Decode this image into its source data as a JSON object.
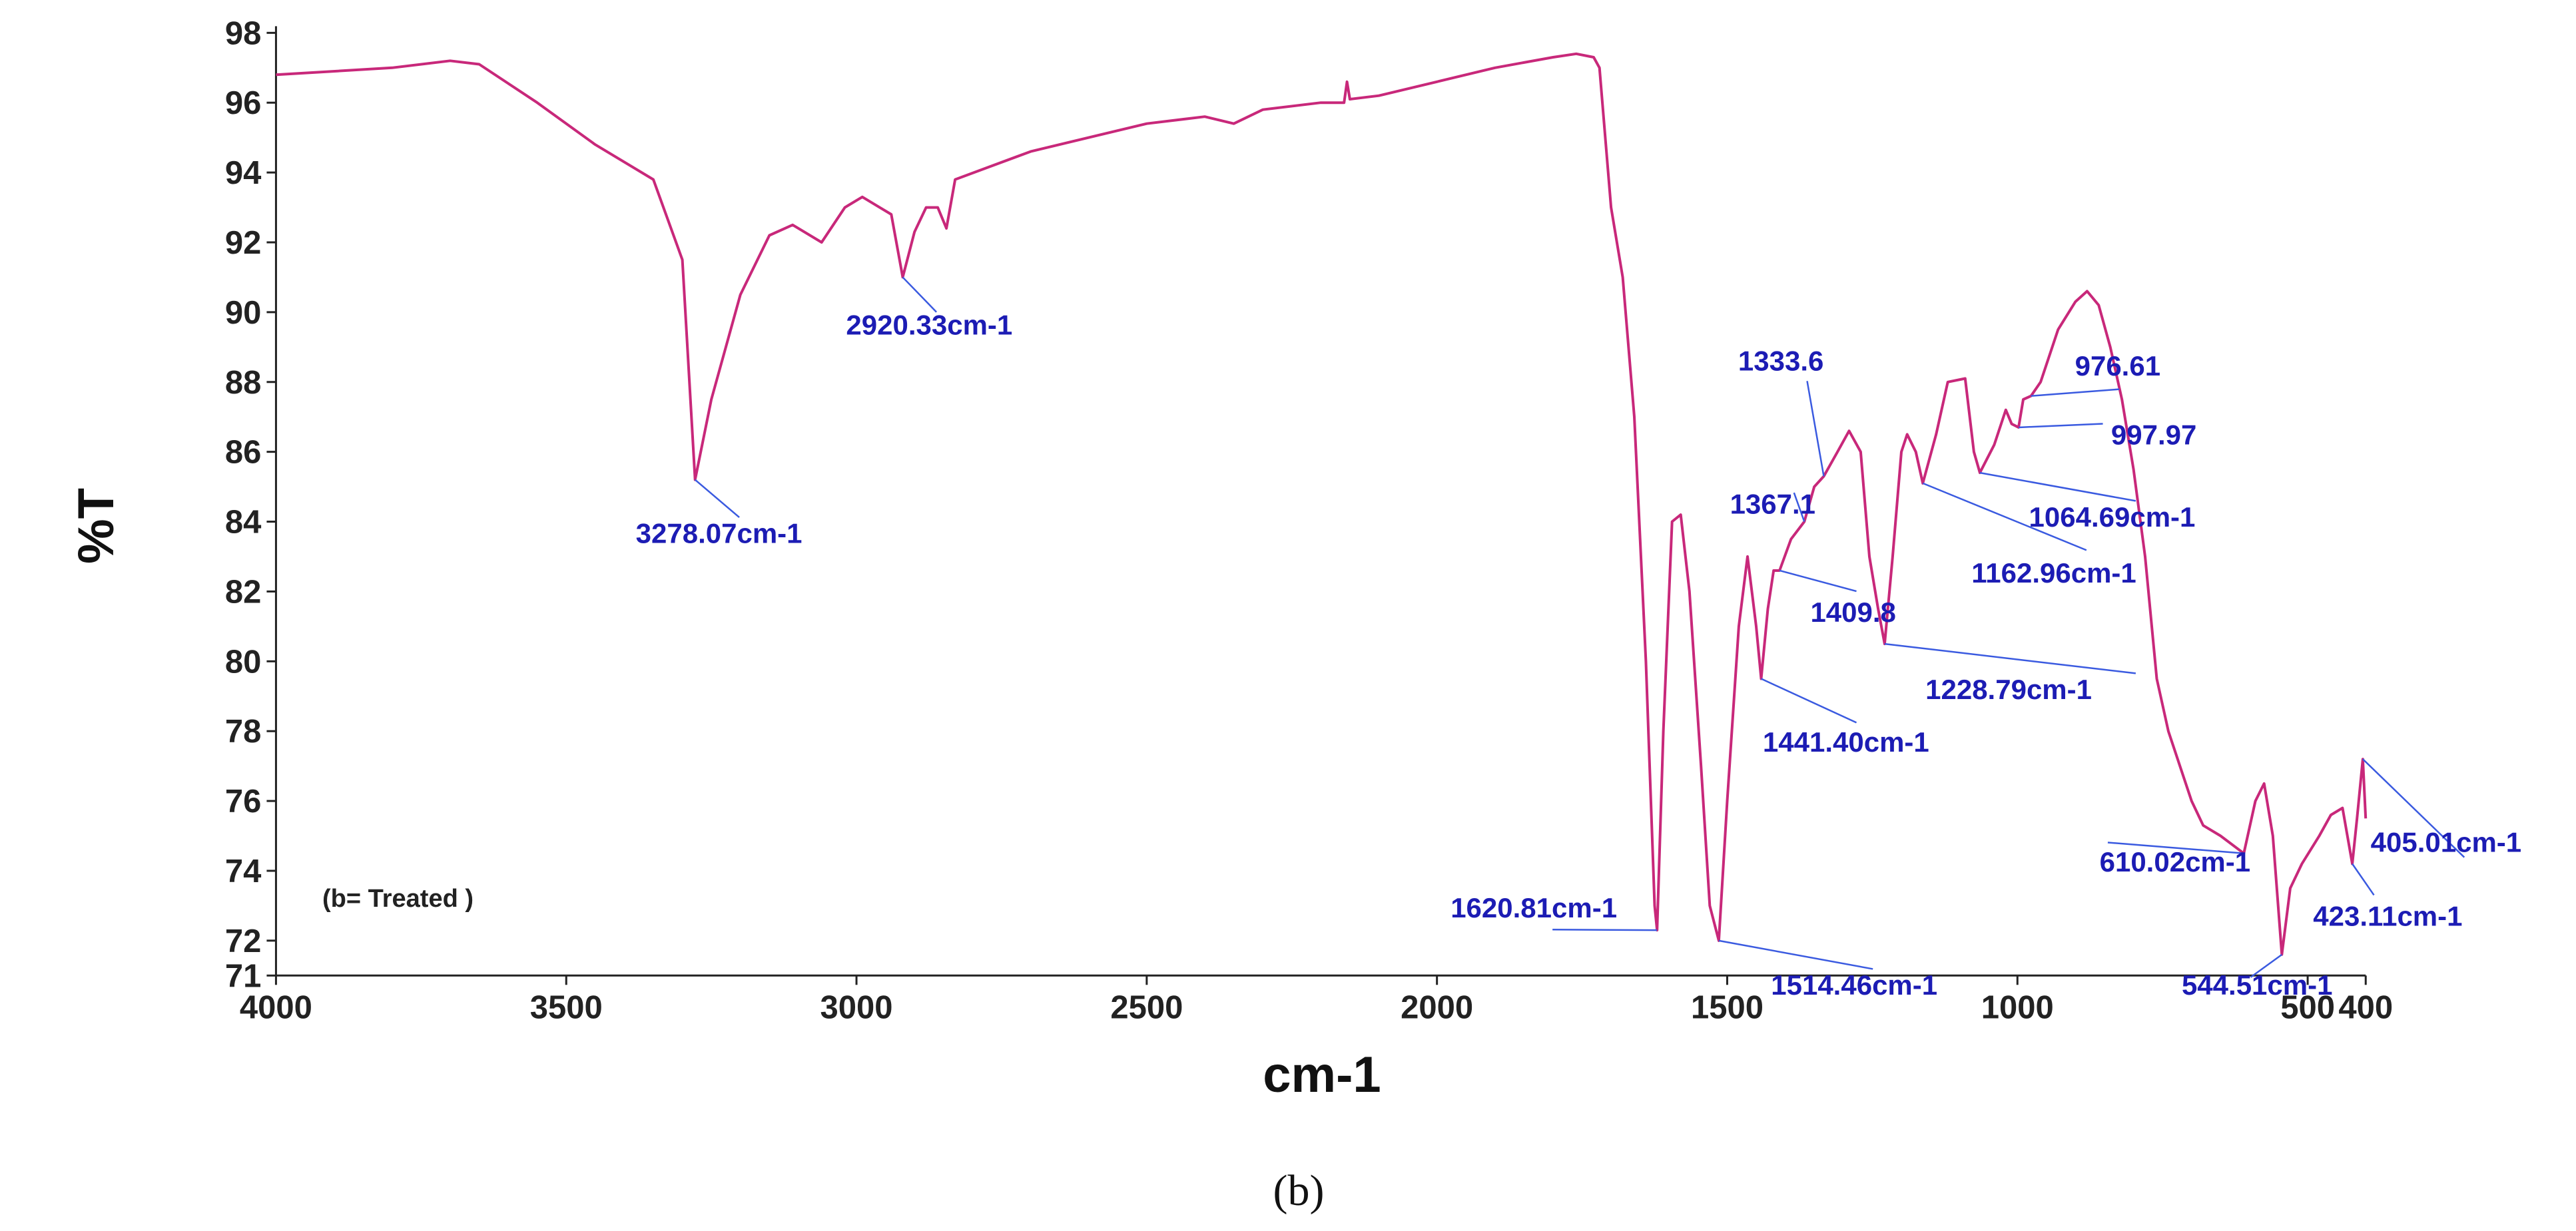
{
  "chart_data": {
    "type": "line",
    "xlabel": "cm-1",
    "ylabel": "%T",
    "note": "(b= Treated )",
    "caption": "(b)",
    "color": "#c8287a",
    "annotation_color": "#1c1cb4",
    "leader_color": "#3a5ae0",
    "xlim": [
      4000,
      400
    ],
    "ylim": [
      71,
      98
    ],
    "xticks": [
      4000,
      3500,
      3000,
      2500,
      2000,
      1500,
      1000,
      500,
      400
    ],
    "yticks": [
      71,
      72,
      74,
      76,
      78,
      80,
      82,
      84,
      86,
      88,
      90,
      92,
      94,
      96,
      98
    ],
    "x": [
      4000,
      3800,
      3700,
      3650,
      3550,
      3450,
      3350,
      3300,
      3278.07,
      3250,
      3200,
      3150,
      3110,
      3060,
      3020,
      2990,
      2960,
      2940,
      2920.33,
      2900,
      2880,
      2860,
      2845,
      2830,
      2700,
      2500,
      2400,
      2350,
      2300,
      2200,
      2160,
      2155,
      2150,
      2100,
      2000,
      1900,
      1800,
      1760,
      1730,
      1720,
      1700,
      1680,
      1660,
      1640,
      1625,
      1620.81,
      1610,
      1595,
      1580,
      1565,
      1545,
      1530,
      1514.46,
      1500,
      1480,
      1465,
      1450,
      1441.4,
      1430,
      1420,
      1409.8,
      1390,
      1367.1,
      1350,
      1333.6,
      1310,
      1290,
      1270,
      1255,
      1240,
      1228.79,
      1215,
      1200,
      1190,
      1175,
      1162.96,
      1140,
      1120,
      1090,
      1075,
      1064.69,
      1040,
      1020,
      1010,
      997.97,
      990,
      976.61,
      960,
      930,
      900,
      880,
      860,
      840,
      820,
      800,
      780,
      760,
      740,
      720,
      700,
      680,
      650,
      610.02,
      590,
      575,
      560,
      544.51,
      530,
      510,
      480,
      460,
      440,
      423.11,
      415,
      405.01,
      400
    ],
    "values": [
      96.8,
      97.0,
      97.2,
      97.1,
      96.0,
      94.8,
      93.8,
      91.5,
      85.2,
      87.5,
      90.5,
      92.2,
      92.5,
      92.0,
      93.0,
      93.3,
      93.0,
      92.8,
      91.0,
      92.3,
      93.0,
      93.0,
      92.4,
      93.8,
      94.6,
      95.4,
      95.6,
      95.4,
      95.8,
      96.0,
      96.0,
      96.6,
      96.1,
      96.2,
      96.6,
      97.0,
      97.3,
      97.4,
      97.3,
      97.0,
      93.0,
      91.0,
      87.0,
      80.0,
      73.0,
      72.3,
      78.0,
      84.0,
      84.2,
      82.0,
      77.0,
      73.0,
      72.0,
      76.0,
      81.0,
      83.0,
      81.0,
      79.5,
      81.5,
      82.6,
      82.6,
      83.5,
      84.0,
      85.0,
      85.3,
      86.0,
      86.6,
      86.0,
      83.0,
      81.5,
      80.5,
      83.0,
      86.0,
      86.5,
      86.0,
      85.1,
      86.5,
      88.0,
      88.1,
      86.0,
      85.4,
      86.2,
      87.2,
      86.8,
      86.7,
      87.5,
      87.6,
      88.0,
      89.5,
      90.3,
      90.6,
      90.2,
      89.0,
      87.5,
      85.5,
      83.0,
      79.5,
      78.0,
      77.0,
      76.0,
      75.3,
      75.0,
      74.5,
      76.0,
      76.5,
      75.0,
      71.6,
      73.5,
      74.2,
      75.0,
      75.6,
      75.8,
      74.2,
      75.5,
      77.2,
      75.5
    ],
    "annotations": [
      {
        "text": "3278.07cm-1",
        "x": 3278.07,
        "y": 85.2
      },
      {
        "text": "2920.33cm-1",
        "x": 2920.33,
        "y": 91.0
      },
      {
        "text": "1333.6",
        "x": 1333.6,
        "y": 85.3
      },
      {
        "text": "1367.1",
        "x": 1367.1,
        "y": 84.0
      },
      {
        "text": "1409.8",
        "x": 1409.8,
        "y": 82.6
      },
      {
        "text": "1228.79cm-1",
        "x": 1228.79,
        "y": 80.5
      },
      {
        "text": "1441.40cm-1",
        "x": 1441.4,
        "y": 79.5
      },
      {
        "text": "1620.81cm-1",
        "x": 1620.81,
        "y": 72.3
      },
      {
        "text": "1514.46cm-1",
        "x": 1514.46,
        "y": 72.0
      },
      {
        "text": "1162.96cm-1",
        "x": 1162.96,
        "y": 85.1
      },
      {
        "text": "1064.69cm-1",
        "x": 1064.69,
        "y": 85.4
      },
      {
        "text": "997.97",
        "x": 997.97,
        "y": 86.7
      },
      {
        "text": "976.61",
        "x": 976.61,
        "y": 87.6
      },
      {
        "text": "610.02cm-1",
        "x": 610.02,
        "y": 74.5
      },
      {
        "text": "544.51cm-1",
        "x": 544.51,
        "y": 71.6
      },
      {
        "text": "423.11cm-1",
        "x": 423.11,
        "y": 74.2
      },
      {
        "text": "405.01cm-1",
        "x": 405.01,
        "y": 77.2
      }
    ]
  }
}
